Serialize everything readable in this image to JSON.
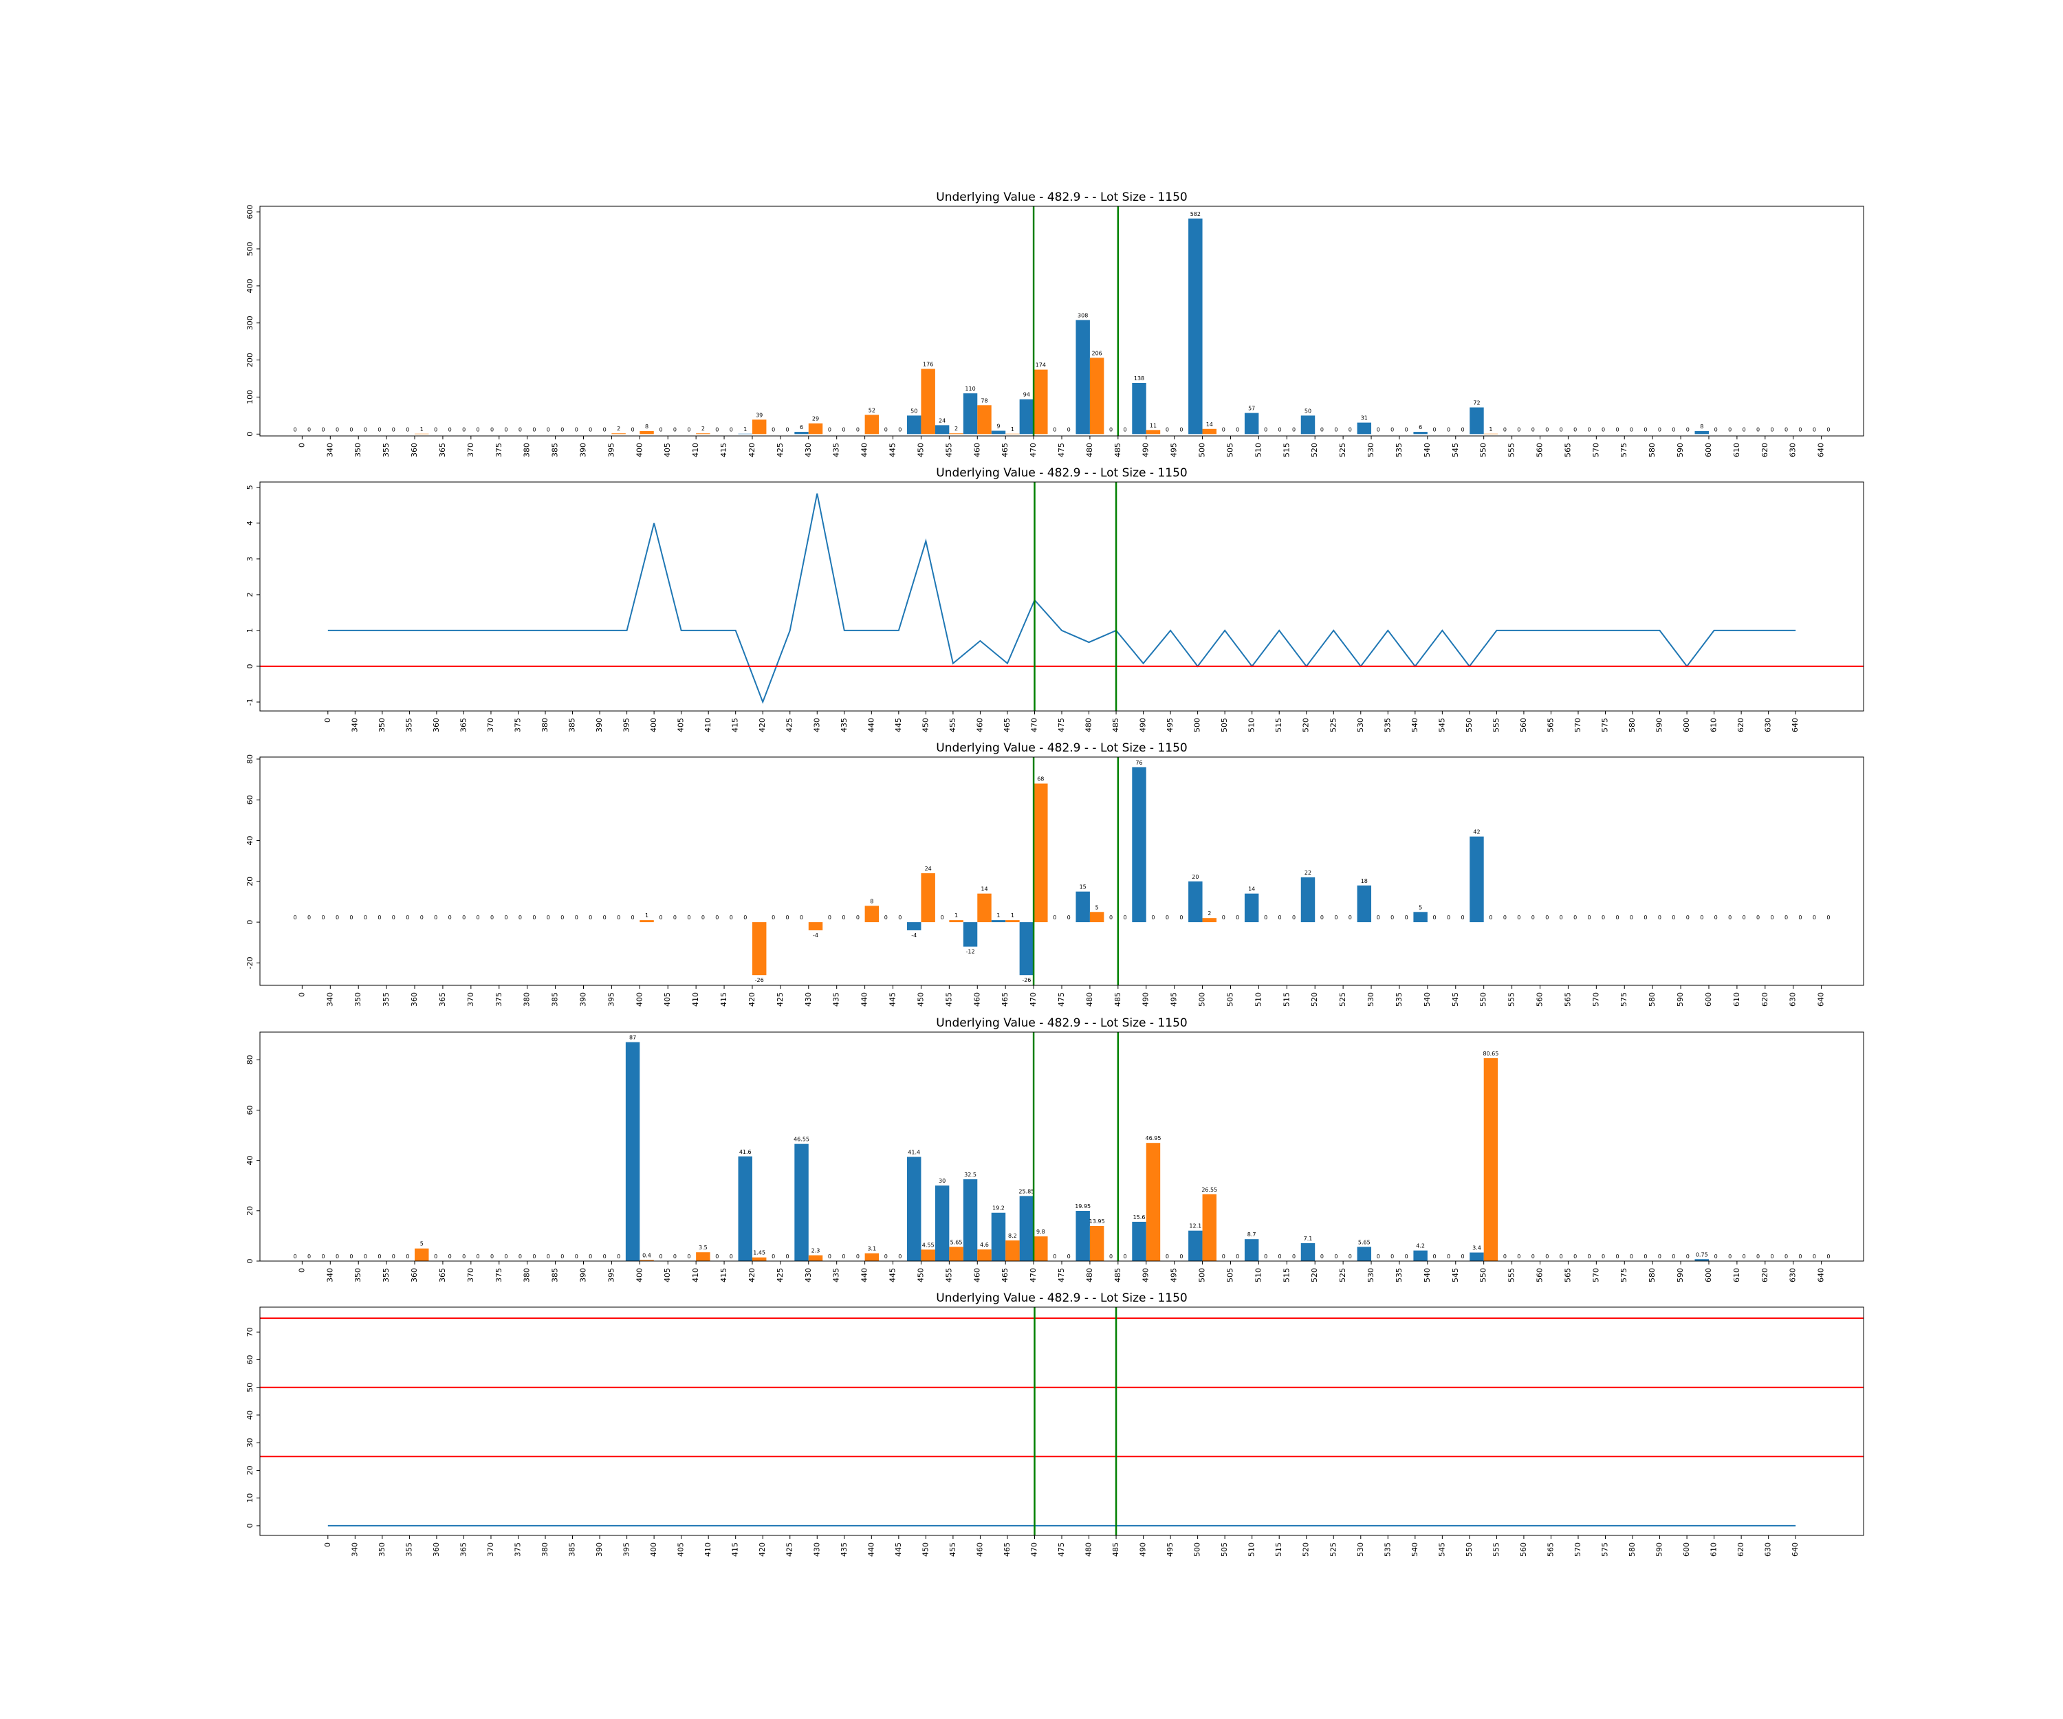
{
  "colors": {
    "blue": "#1f77b4",
    "orange": "#ff7f0e",
    "green": "#008000",
    "red": "#ff0000"
  },
  "chart_data": [
    {
      "type": "bar",
      "title": "Underlying Value - 482.9 - - Lot Size - 1150",
      "xlabel": "",
      "ylabel": "",
      "categories": [
        "0",
        "340",
        "350",
        "355",
        "360",
        "365",
        "370",
        "375",
        "380",
        "385",
        "390",
        "395",
        "400",
        "405",
        "410",
        "415",
        "420",
        "425",
        "430",
        "435",
        "440",
        "445",
        "450",
        "455",
        "460",
        "465",
        "470",
        "475",
        "480",
        "485",
        "490",
        "495",
        "500",
        "505",
        "510",
        "515",
        "520",
        "525",
        "530",
        "535",
        "540",
        "545",
        "550",
        "555",
        "560",
        "565",
        "570",
        "575",
        "580",
        "590",
        "600",
        "610",
        "620",
        "630",
        "640"
      ],
      "series": [
        {
          "color": "blue",
          "values": [
            0,
            0,
            0,
            0,
            0,
            0,
            0,
            0,
            0,
            0,
            0,
            0,
            0,
            0,
            0,
            0,
            1,
            0,
            6,
            0,
            0,
            0,
            50,
            24,
            110,
            9,
            94,
            0,
            308,
            0,
            138,
            0,
            582,
            0,
            57,
            0,
            50,
            0,
            31,
            0,
            6,
            0,
            72,
            0,
            0,
            0,
            0,
            0,
            0,
            0,
            8,
            0,
            0,
            0,
            0
          ]
        },
        {
          "color": "orange",
          "values": [
            0,
            0,
            0,
            0,
            1,
            0,
            0,
            0,
            0,
            0,
            0,
            2,
            8,
            0,
            2,
            0,
            39,
            0,
            29,
            0,
            52,
            0,
            176,
            2,
            78,
            1,
            174,
            0,
            206,
            0,
            11,
            0,
            14,
            0,
            0,
            0,
            0,
            0,
            0,
            0,
            0,
            0,
            1,
            0,
            0,
            0,
            0,
            0,
            0,
            0,
            0,
            0,
            0,
            0,
            0
          ]
        }
      ],
      "ylim": [
        -5,
        615
      ],
      "yticks": [
        0,
        100,
        200,
        300,
        400,
        500,
        600
      ],
      "vlines": [
        {
          "x": "470",
          "color": "green"
        },
        {
          "x": "485",
          "color": "green"
        }
      ],
      "show_bar_labels": true
    },
    {
      "type": "line",
      "title": "Underlying Value - 482.9 - - Lot Size - 1150",
      "xlabel": "",
      "ylabel": "",
      "categories": [
        "0",
        "340",
        "350",
        "355",
        "360",
        "365",
        "370",
        "375",
        "380",
        "385",
        "390",
        "395",
        "400",
        "405",
        "410",
        "415",
        "420",
        "425",
        "430",
        "435",
        "440",
        "445",
        "450",
        "455",
        "460",
        "465",
        "470",
        "475",
        "480",
        "485",
        "490",
        "495",
        "500",
        "505",
        "510",
        "515",
        "520",
        "525",
        "530",
        "535",
        "540",
        "545",
        "550",
        "555",
        "560",
        "565",
        "570",
        "575",
        "580",
        "590",
        "600",
        "610",
        "620",
        "630",
        "640"
      ],
      "series": [
        {
          "color": "blue",
          "values": [
            1,
            1,
            1,
            1,
            1,
            1,
            1,
            1,
            1,
            1,
            1,
            1,
            4,
            1,
            1,
            1,
            -1,
            1,
            4.83,
            1,
            1,
            1,
            3.5,
            0.08,
            0.71,
            0.08,
            1.85,
            1,
            0.67,
            1,
            0.08,
            1,
            0,
            1,
            0,
            1,
            0,
            1,
            0,
            1,
            0,
            1,
            0,
            1,
            1,
            1,
            1,
            1,
            1,
            1,
            0,
            1,
            1,
            1,
            1
          ]
        }
      ],
      "ylim": [
        -1.25,
        5.15
      ],
      "yticks": [
        -1,
        0,
        1,
        2,
        3,
        4,
        5
      ],
      "hlines": [
        {
          "y": 0,
          "color": "red"
        }
      ],
      "vlines": [
        {
          "x": "470",
          "color": "green"
        },
        {
          "x": "485",
          "color": "green"
        }
      ],
      "show_bar_labels": false
    },
    {
      "type": "bar",
      "title": "Underlying Value - 482.9 - - Lot Size - 1150",
      "xlabel": "",
      "ylabel": "",
      "categories": [
        "0",
        "340",
        "350",
        "355",
        "360",
        "365",
        "370",
        "375",
        "380",
        "385",
        "390",
        "395",
        "400",
        "405",
        "410",
        "415",
        "420",
        "425",
        "430",
        "435",
        "440",
        "445",
        "450",
        "455",
        "460",
        "465",
        "470",
        "475",
        "480",
        "485",
        "490",
        "495",
        "500",
        "505",
        "510",
        "515",
        "520",
        "525",
        "530",
        "535",
        "540",
        "545",
        "550",
        "555",
        "560",
        "565",
        "570",
        "575",
        "580",
        "590",
        "600",
        "610",
        "620",
        "630",
        "640"
      ],
      "series": [
        {
          "color": "blue",
          "values": [
            0,
            0,
            0,
            0,
            0,
            0,
            0,
            0,
            0,
            0,
            0,
            0,
            0,
            0,
            0,
            0,
            0,
            0,
            0,
            0,
            0,
            0,
            -4,
            0,
            -12,
            1,
            -26,
            0,
            15,
            0,
            76,
            0,
            20,
            0,
            14,
            0,
            22,
            0,
            18,
            0,
            5,
            0,
            42,
            0,
            0,
            0,
            0,
            0,
            0,
            0,
            0,
            0,
            0,
            0,
            0
          ]
        },
        {
          "color": "orange",
          "values": [
            0,
            0,
            0,
            0,
            0,
            0,
            0,
            0,
            0,
            0,
            0,
            0,
            1,
            0,
            0,
            0,
            -26,
            0,
            -4,
            0,
            8,
            0,
            24,
            1,
            14,
            1,
            68,
            0,
            5,
            0,
            0,
            0,
            2,
            0,
            0,
            0,
            0,
            0,
            0,
            0,
            0,
            0,
            0,
            0,
            0,
            0,
            0,
            0,
            0,
            0,
            0,
            0,
            0,
            0,
            0
          ]
        }
      ],
      "ylim": [
        -31,
        81
      ],
      "yticks": [
        -20,
        0,
        20,
        40,
        60,
        80
      ],
      "vlines": [
        {
          "x": "470",
          "color": "green"
        },
        {
          "x": "485",
          "color": "green"
        }
      ],
      "show_bar_labels": true
    },
    {
      "type": "bar",
      "title": "Underlying Value - 482.9 - - Lot Size - 1150",
      "xlabel": "",
      "ylabel": "",
      "categories": [
        "0",
        "340",
        "350",
        "355",
        "360",
        "365",
        "370",
        "375",
        "380",
        "385",
        "390",
        "395",
        "400",
        "405",
        "410",
        "415",
        "420",
        "425",
        "430",
        "435",
        "440",
        "445",
        "450",
        "455",
        "460",
        "465",
        "470",
        "475",
        "480",
        "485",
        "490",
        "495",
        "500",
        "505",
        "510",
        "515",
        "520",
        "525",
        "530",
        "535",
        "540",
        "545",
        "550",
        "555",
        "560",
        "565",
        "570",
        "575",
        "580",
        "590",
        "600",
        "610",
        "620",
        "630",
        "640"
      ],
      "series": [
        {
          "color": "blue",
          "values": [
            0.0,
            0.0,
            0.0,
            0.0,
            0.0,
            0.0,
            0.0,
            0.0,
            0.0,
            0.0,
            0.0,
            0.0,
            87.0,
            0.0,
            0.0,
            0.0,
            41.6,
            0.0,
            46.55,
            0.0,
            0.0,
            0.0,
            41.4,
            30.0,
            32.5,
            19.2,
            25.85,
            0.0,
            19.95,
            0.0,
            15.6,
            0.0,
            12.1,
            0.0,
            8.7,
            0.0,
            7.1,
            0.0,
            5.65,
            0.0,
            4.2,
            0.0,
            3.4,
            0.0,
            0.0,
            0.0,
            0.0,
            0.0,
            0.0,
            0.0,
            0.75,
            0.0,
            0.0,
            0.0,
            0.0
          ]
        },
        {
          "color": "orange",
          "values": [
            0.0,
            0.0,
            0.0,
            0.0,
            5.0,
            0.0,
            0.0,
            0.0,
            0.0,
            0.0,
            0.0,
            0.0,
            0.4,
            0.0,
            3.5,
            0.0,
            1.45,
            0.0,
            2.3,
            0.0,
            3.1,
            0.0,
            4.55,
            5.65,
            4.6,
            8.2,
            9.8,
            0.0,
            13.95,
            0.0,
            46.95,
            0.0,
            26.55,
            0.0,
            0.0,
            0.0,
            0.0,
            0.0,
            0.0,
            0.0,
            0.0,
            0.0,
            80.65,
            0.0,
            0.0,
            0.0,
            0.0,
            0.0,
            0.0,
            0.0,
            0.0,
            0.0,
            0.0,
            0.0,
            0.0
          ]
        }
      ],
      "ylim": [
        0,
        91
      ],
      "yticks": [
        0,
        20,
        40,
        60,
        80
      ],
      "vlines": [
        {
          "x": "470",
          "color": "green"
        },
        {
          "x": "485",
          "color": "green"
        }
      ],
      "show_bar_labels": true
    },
    {
      "type": "line",
      "title": "Underlying Value - 482.9 - - Lot Size - 1150",
      "xlabel": "",
      "ylabel": "",
      "categories": [
        "0",
        "340",
        "350",
        "355",
        "360",
        "365",
        "370",
        "375",
        "380",
        "385",
        "390",
        "395",
        "400",
        "405",
        "410",
        "415",
        "420",
        "425",
        "430",
        "435",
        "440",
        "445",
        "450",
        "455",
        "460",
        "465",
        "470",
        "475",
        "480",
        "485",
        "490",
        "495",
        "500",
        "505",
        "510",
        "515",
        "520",
        "525",
        "530",
        "535",
        "540",
        "545",
        "550",
        "555",
        "560",
        "565",
        "570",
        "575",
        "580",
        "590",
        "600",
        "610",
        "620",
        "630",
        "640"
      ],
      "series": [
        {
          "color": "blue",
          "values": [
            0,
            0,
            0,
            0,
            0,
            0,
            0,
            0,
            0,
            0,
            0,
            0,
            0,
            0,
            0,
            0,
            0,
            0,
            0,
            0,
            0,
            0,
            0,
            0,
            0,
            0,
            0,
            0,
            0,
            0,
            0,
            0,
            0,
            0,
            0,
            0,
            0,
            0,
            0,
            0,
            0,
            0,
            0,
            0,
            0,
            0,
            0,
            0,
            0,
            0,
            0,
            0,
            0,
            0,
            0
          ]
        }
      ],
      "ylim": [
        -3.5,
        79
      ],
      "yticks": [
        0,
        10,
        20,
        30,
        40,
        50,
        60,
        70
      ],
      "hlines": [
        {
          "y": 25,
          "color": "red"
        },
        {
          "y": 50,
          "color": "red"
        },
        {
          "y": 75,
          "color": "red"
        }
      ],
      "vlines": [
        {
          "x": "470",
          "color": "green"
        },
        {
          "x": "485",
          "color": "green"
        }
      ],
      "show_bar_labels": false
    }
  ]
}
